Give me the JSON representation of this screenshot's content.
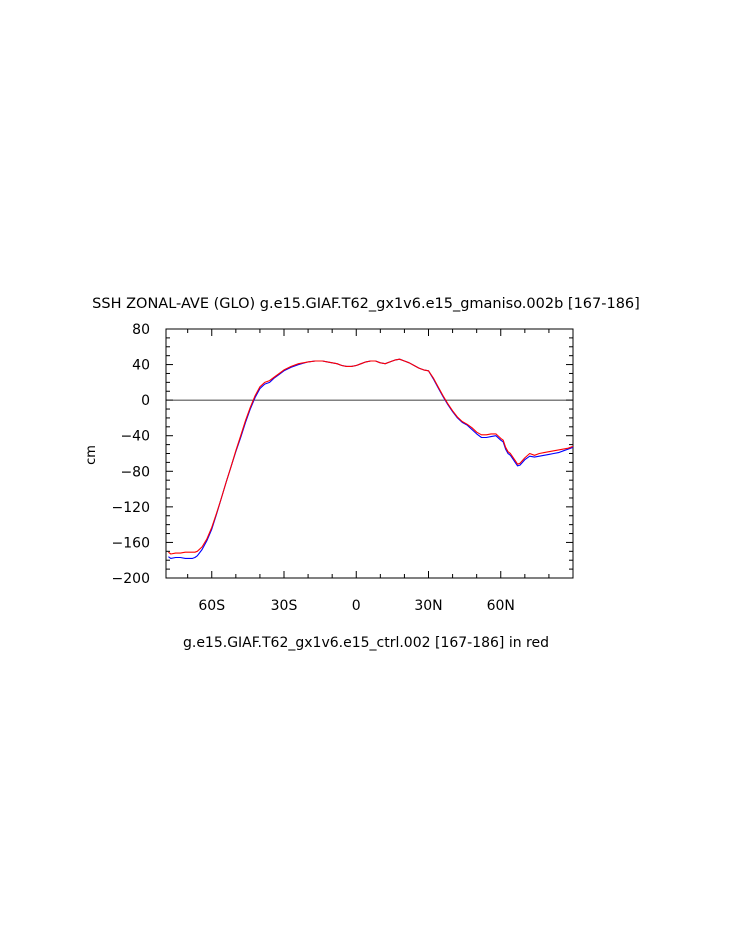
{
  "chart_data": {
    "type": "line",
    "title": "SSH ZONAL-AVE (GLO) g.e15.GIAF.T62_gx1v6.e15_gmaniso.002b [167-186]",
    "subtitle": "g.e15.GIAF.T62_gx1v6.e15_ctrl.002 [167-186] in red",
    "xlabel": "",
    "ylabel": "cm",
    "xlim": [
      -79,
      90
    ],
    "ylim": [
      -200,
      80
    ],
    "x_ticks": [
      {
        "value": -60,
        "label": "60S"
      },
      {
        "value": -30,
        "label": "30S"
      },
      {
        "value": 0,
        "label": "0"
      },
      {
        "value": 30,
        "label": "30N"
      },
      {
        "value": 60,
        "label": "60N"
      }
    ],
    "y_ticks": [
      {
        "value": 80,
        "label": "80"
      },
      {
        "value": 40,
        "label": "40"
      },
      {
        "value": 0,
        "label": "0"
      },
      {
        "value": -40,
        "label": "−40"
      },
      {
        "value": -80,
        "label": "−80"
      },
      {
        "value": -120,
        "label": "−120"
      },
      {
        "value": -160,
        "label": "−160"
      },
      {
        "value": -200,
        "label": "−200"
      }
    ],
    "zero_line": 0,
    "series": [
      {
        "color": "#0000ff",
        "x": [
          -78,
          -77,
          -75,
          -73,
          -71,
          -69,
          -68,
          -67,
          -66,
          -64,
          -62,
          -60,
          -58,
          -56,
          -54,
          -52,
          -50,
          -48,
          -46,
          -44,
          -42,
          -40,
          -38,
          -36,
          -34,
          -32,
          -30,
          -27,
          -24,
          -20,
          -17,
          -14,
          -12,
          -10,
          -8,
          -6,
          -4,
          -2,
          0,
          2,
          4,
          6,
          8,
          10,
          12,
          14,
          16,
          18,
          20,
          22,
          24,
          26,
          28,
          30,
          32,
          34,
          36,
          38,
          40,
          42,
          44,
          46,
          48,
          50,
          52,
          54,
          56,
          58,
          60,
          61,
          62,
          63,
          64,
          65,
          66,
          67,
          68,
          70,
          72,
          74,
          76,
          78,
          80,
          82,
          84,
          86,
          88,
          90
        ],
        "y": [
          -176,
          -178,
          -177,
          -177,
          -178,
          -178,
          -178,
          -177,
          -175,
          -168,
          -158,
          -145,
          -128,
          -110,
          -92,
          -75,
          -58,
          -42,
          -25,
          -10,
          3,
          13,
          18,
          20,
          25,
          29,
          33,
          37,
          40,
          43,
          44,
          44,
          43,
          42,
          41,
          39,
          38,
          38,
          39,
          41,
          43,
          44,
          44,
          42,
          41,
          43,
          45,
          46,
          44,
          42,
          39,
          36,
          34,
          33,
          24,
          14,
          4,
          -5,
          -13,
          -20,
          -25,
          -28,
          -33,
          -38,
          -42,
          -42,
          -41,
          -40,
          -45,
          -47,
          -55,
          -60,
          -62,
          -66,
          -70,
          -74,
          -73,
          -67,
          -63,
          -64,
          -63,
          -62,
          -61,
          -60,
          -59,
          -57,
          -55,
          -53
        ]
      },
      {
        "color": "#ff0000",
        "x": [
          -78,
          -77,
          -75,
          -73,
          -71,
          -69,
          -68,
          -67,
          -66,
          -64,
          -62,
          -60,
          -58,
          -56,
          -54,
          -52,
          -50,
          -48,
          -46,
          -44,
          -42,
          -40,
          -38,
          -36,
          -34,
          -32,
          -30,
          -27,
          -24,
          -20,
          -17,
          -14,
          -12,
          -10,
          -8,
          -6,
          -4,
          -2,
          0,
          2,
          4,
          6,
          8,
          10,
          12,
          14,
          16,
          18,
          20,
          22,
          24,
          26,
          28,
          30,
          32,
          34,
          36,
          38,
          40,
          42,
          44,
          46,
          48,
          50,
          52,
          54,
          56,
          58,
          60,
          61,
          62,
          63,
          64,
          65,
          66,
          67,
          68,
          70,
          72,
          74,
          76,
          78,
          80,
          82,
          84,
          86,
          88,
          90
        ],
        "y": [
          -171,
          -173,
          -172,
          -172,
          -171,
          -171,
          -171,
          -171,
          -170,
          -165,
          -156,
          -143,
          -127,
          -110,
          -92,
          -75,
          -57,
          -40,
          -23,
          -8,
          5,
          15,
          20,
          22,
          26,
          30,
          34,
          38,
          41,
          43,
          44,
          44,
          43,
          42,
          41,
          39,
          38,
          38,
          39,
          41,
          43,
          44,
          44,
          42,
          41,
          43,
          45,
          46,
          44,
          42,
          39,
          36,
          34,
          33,
          25,
          15,
          5,
          -4,
          -12,
          -19,
          -24,
          -27,
          -31,
          -36,
          -39,
          -39,
          -38,
          -38,
          -43,
          -45,
          -53,
          -58,
          -60,
          -64,
          -68,
          -72,
          -71,
          -65,
          -60,
          -62,
          -60,
          -59,
          -58,
          -57,
          -56,
          -55,
          -54,
          -52
        ]
      }
    ]
  }
}
